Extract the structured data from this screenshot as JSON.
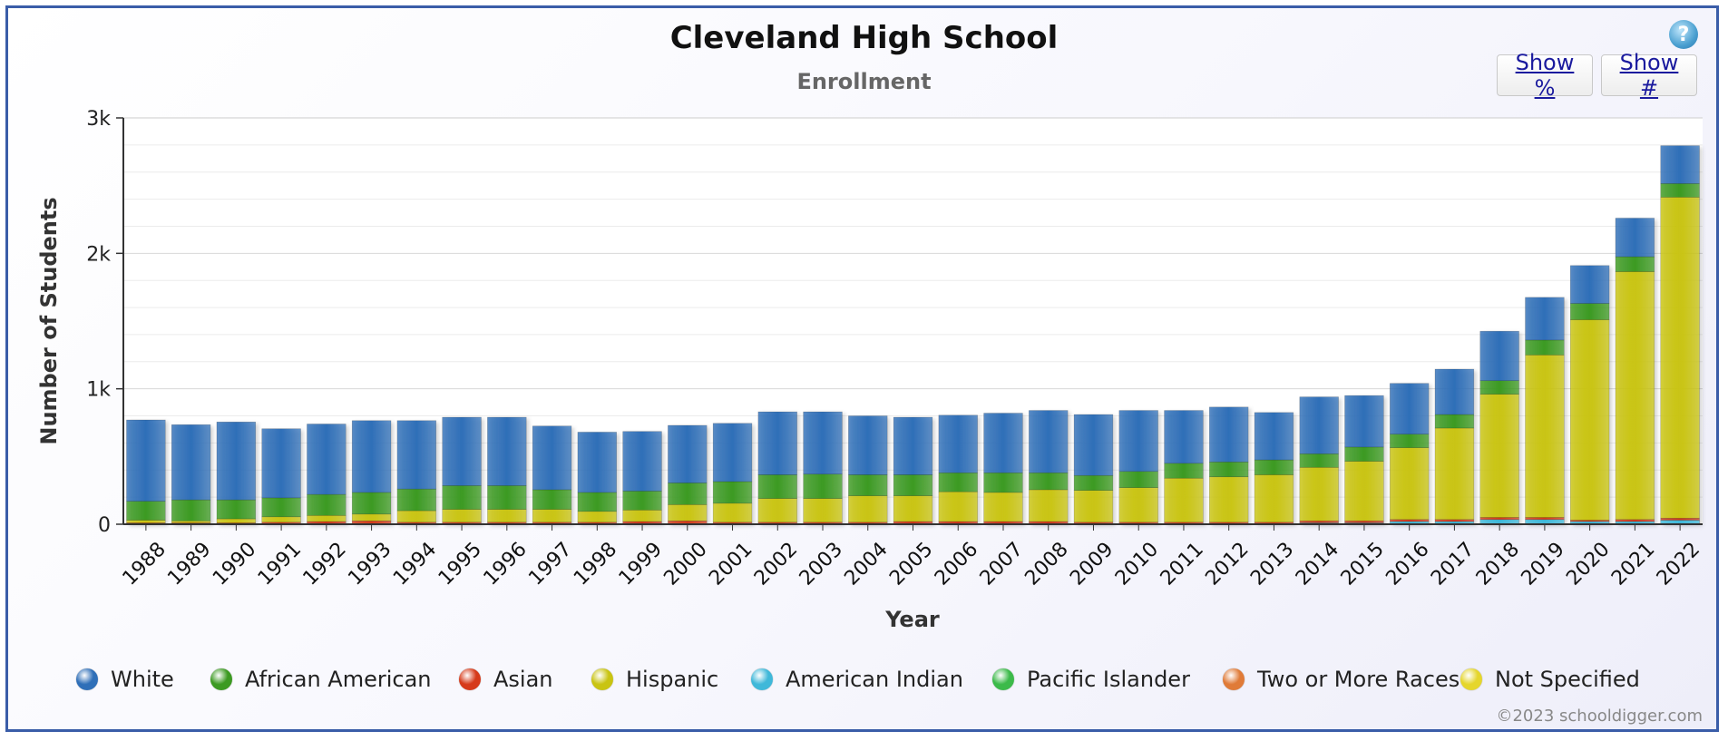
{
  "chart_data": {
    "type": "bar",
    "stacked": true,
    "title": "Cleveland High School",
    "subtitle": "Enrollment",
    "xlabel": "Year",
    "ylabel": "Number of Students",
    "ylim": [
      0,
      3000
    ],
    "yticks": [
      0,
      1000,
      2000,
      3000
    ],
    "ytick_labels": [
      "0",
      "1k",
      "2k",
      "3k"
    ],
    "grid": true,
    "legend_position": "bottom",
    "categories": [
      "1988",
      "1989",
      "1990",
      "1991",
      "1992",
      "1993",
      "1994",
      "1995",
      "1996",
      "1997",
      "1998",
      "1999",
      "2000",
      "2001",
      "2002",
      "2003",
      "2004",
      "2005",
      "2006",
      "2007",
      "2008",
      "2009",
      "2010",
      "2011",
      "2012",
      "2013",
      "2014",
      "2015",
      "2016",
      "2017",
      "2018",
      "2019",
      "2020",
      "2021",
      "2022"
    ],
    "series": [
      {
        "name": "American Indian",
        "color": "#3fb8d9",
        "values": [
          5,
          5,
          5,
          5,
          5,
          5,
          5,
          5,
          5,
          5,
          5,
          5,
          5,
          5,
          5,
          5,
          5,
          5,
          5,
          5,
          5,
          5,
          5,
          5,
          5,
          5,
          10,
          10,
          20,
          20,
          35,
          35,
          20,
          20,
          30
        ]
      },
      {
        "name": "Asian",
        "color": "#d63a1a",
        "values": [
          5,
          5,
          5,
          10,
          15,
          20,
          10,
          10,
          10,
          10,
          10,
          15,
          20,
          10,
          10,
          10,
          10,
          15,
          15,
          15,
          15,
          10,
          10,
          10,
          10,
          10,
          15,
          15,
          15,
          15,
          15,
          15,
          10,
          15,
          15
        ]
      },
      {
        "name": "Hispanic",
        "color": "#c9c412",
        "values": [
          20,
          15,
          30,
          40,
          45,
          50,
          85,
          95,
          95,
          95,
          80,
          85,
          120,
          140,
          175,
          175,
          195,
          190,
          220,
          215,
          235,
          235,
          255,
          325,
          335,
          350,
          395,
          440,
          530,
          675,
          910,
          1200,
          1480,
          1830,
          2370
        ]
      },
      {
        "name": "African American",
        "color": "#3c9a22",
        "values": [
          140,
          155,
          140,
          140,
          155,
          160,
          160,
          175,
          175,
          145,
          140,
          140,
          160,
          160,
          175,
          180,
          155,
          155,
          140,
          145,
          125,
          110,
          120,
          110,
          110,
          110,
          100,
          105,
          100,
          100,
          100,
          110,
          120,
          110,
          100
        ]
      },
      {
        "name": "White",
        "color": "#2f6fb8",
        "values": [
          600,
          555,
          575,
          510,
          520,
          530,
          505,
          505,
          505,
          470,
          445,
          440,
          425,
          430,
          465,
          460,
          435,
          425,
          425,
          440,
          460,
          450,
          450,
          390,
          405,
          350,
          420,
          380,
          375,
          335,
          365,
          315,
          280,
          285,
          280
        ]
      },
      {
        "name": "Pacific Islander",
        "color": "#3cba4a",
        "values": [
          0,
          0,
          0,
          0,
          0,
          0,
          0,
          0,
          0,
          0,
          0,
          0,
          0,
          0,
          0,
          0,
          0,
          0,
          0,
          0,
          0,
          0,
          0,
          0,
          0,
          0,
          0,
          0,
          0,
          0,
          0,
          0,
          0,
          0,
          0
        ]
      },
      {
        "name": "Two or More Races",
        "color": "#e07b38",
        "values": [
          0,
          0,
          0,
          0,
          0,
          0,
          0,
          0,
          0,
          0,
          0,
          0,
          0,
          0,
          0,
          0,
          0,
          0,
          0,
          0,
          0,
          0,
          0,
          0,
          0,
          0,
          0,
          0,
          0,
          0,
          0,
          0,
          0,
          0,
          0
        ]
      },
      {
        "name": "Not Specified",
        "color": "#e5d62c",
        "values": [
          0,
          0,
          0,
          0,
          0,
          0,
          0,
          0,
          0,
          0,
          0,
          0,
          0,
          0,
          0,
          0,
          0,
          0,
          0,
          0,
          0,
          0,
          0,
          0,
          0,
          0,
          0,
          0,
          0,
          0,
          0,
          0,
          0,
          0,
          0
        ]
      }
    ],
    "legend": [
      {
        "name": "White",
        "color": "#2f6fb8"
      },
      {
        "name": "African American",
        "color": "#3c9a22"
      },
      {
        "name": "Asian",
        "color": "#d63a1a"
      },
      {
        "name": "Hispanic",
        "color": "#c9c412"
      },
      {
        "name": "American Indian",
        "color": "#3fb8d9"
      },
      {
        "name": "Pacific Islander",
        "color": "#3cba4a"
      },
      {
        "name": "Two or More Races",
        "color": "#e07b38"
      },
      {
        "name": "Not Specified",
        "color": "#e5d62c"
      }
    ]
  },
  "controls": {
    "show_percent_label": "Show %",
    "show_number_label": "Show #",
    "help_label": "?"
  },
  "credit": "©2023 schooldigger.com"
}
